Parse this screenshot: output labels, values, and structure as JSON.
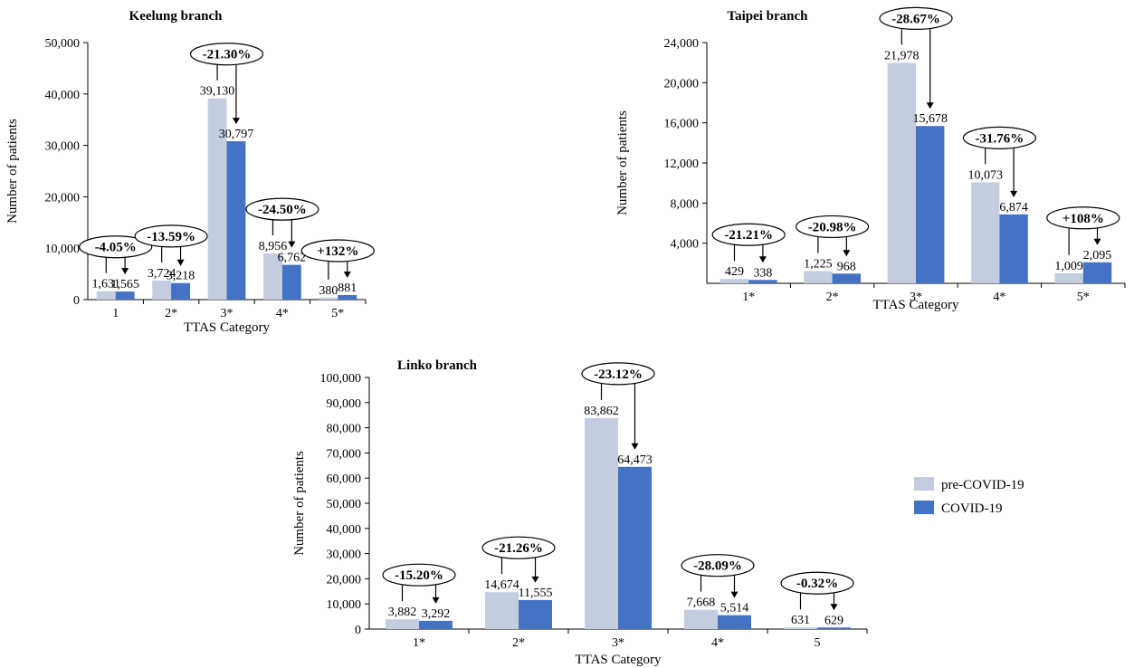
{
  "colors": {
    "pre": "#c2cee0",
    "covid": "#4472c4"
  },
  "legend": {
    "pre_label": "pre-COVID-19",
    "covid_label": "COVID-19"
  },
  "chart_data": [
    {
      "type": "bar",
      "title": "Keelung branch",
      "xlabel": "TTAS Category",
      "ylabel": "Number of patients",
      "ylim": [
        0,
        50000
      ],
      "yticks": [
        "0",
        "10,000",
        "20,000",
        "30,000",
        "40,000",
        "50,000"
      ],
      "categories": [
        "1",
        "2*",
        "3*",
        "4*",
        "5*"
      ],
      "series": [
        {
          "name": "pre-COVID-19",
          "values": [
            1631,
            3724,
            39130,
            8956,
            380
          ],
          "labels": [
            "1,631",
            "3,724",
            "39,130",
            "8,956",
            "380"
          ]
        },
        {
          "name": "COVID-19",
          "values": [
            1565,
            3218,
            30797,
            6762,
            881
          ],
          "labels": [
            "1,565",
            "3,218",
            "30,797",
            "6,762",
            "881"
          ]
        }
      ],
      "changes": [
        "-4.05%",
        "-13.59%",
        "-21.30%",
        "-24.50%",
        "+132%"
      ]
    },
    {
      "type": "bar",
      "title": "Taipei branch",
      "xlabel": "TTAS Category",
      "ylabel": "Number of patients",
      "ylim": [
        0,
        24000
      ],
      "yticks": [
        "4,000",
        "8,000",
        "12,000",
        "16,000",
        "20,000",
        "24,000"
      ],
      "categories": [
        "1*",
        "2*",
        "3*",
        "4*",
        "5*"
      ],
      "series": [
        {
          "name": "pre-COVID-19",
          "values": [
            429,
            1225,
            21978,
            10073,
            1009
          ],
          "labels": [
            "429",
            "1,225",
            "21,978",
            "10,073",
            "1,009"
          ]
        },
        {
          "name": "COVID-19",
          "values": [
            338,
            968,
            15678,
            6874,
            2095
          ],
          "labels": [
            "338",
            "968",
            "15,678",
            "6,874",
            "2,095"
          ]
        }
      ],
      "changes": [
        "-21.21%",
        "-20.98%",
        "-28.67%",
        "-31.76%",
        "+108%"
      ]
    },
    {
      "type": "bar",
      "title": "Linko branch",
      "xlabel": "TTAS Category",
      "ylabel": "Number of patients",
      "ylim": [
        0,
        100000
      ],
      "yticks": [
        "0",
        "10,000",
        "20,000",
        "30,000",
        "40,000",
        "50,000",
        "60,000",
        "70,000",
        "80,000",
        "90,000",
        "100,000"
      ],
      "categories": [
        "1*",
        "2*",
        "3*",
        "4*",
        "5"
      ],
      "series": [
        {
          "name": "pre-COVID-19",
          "values": [
            3882,
            14674,
            83862,
            7668,
            631
          ],
          "labels": [
            "3,882",
            "14,674",
            "83,862",
            "7,668",
            "631"
          ]
        },
        {
          "name": "COVID-19",
          "values": [
            3292,
            11555,
            64473,
            5514,
            629
          ],
          "labels": [
            "3,292",
            "11,555",
            "64,473",
            "5,514",
            "629"
          ]
        }
      ],
      "changes": [
        "-15.20%",
        "-21.26%",
        "-23.12%",
        "-28.09%",
        "-0.32%"
      ]
    }
  ]
}
